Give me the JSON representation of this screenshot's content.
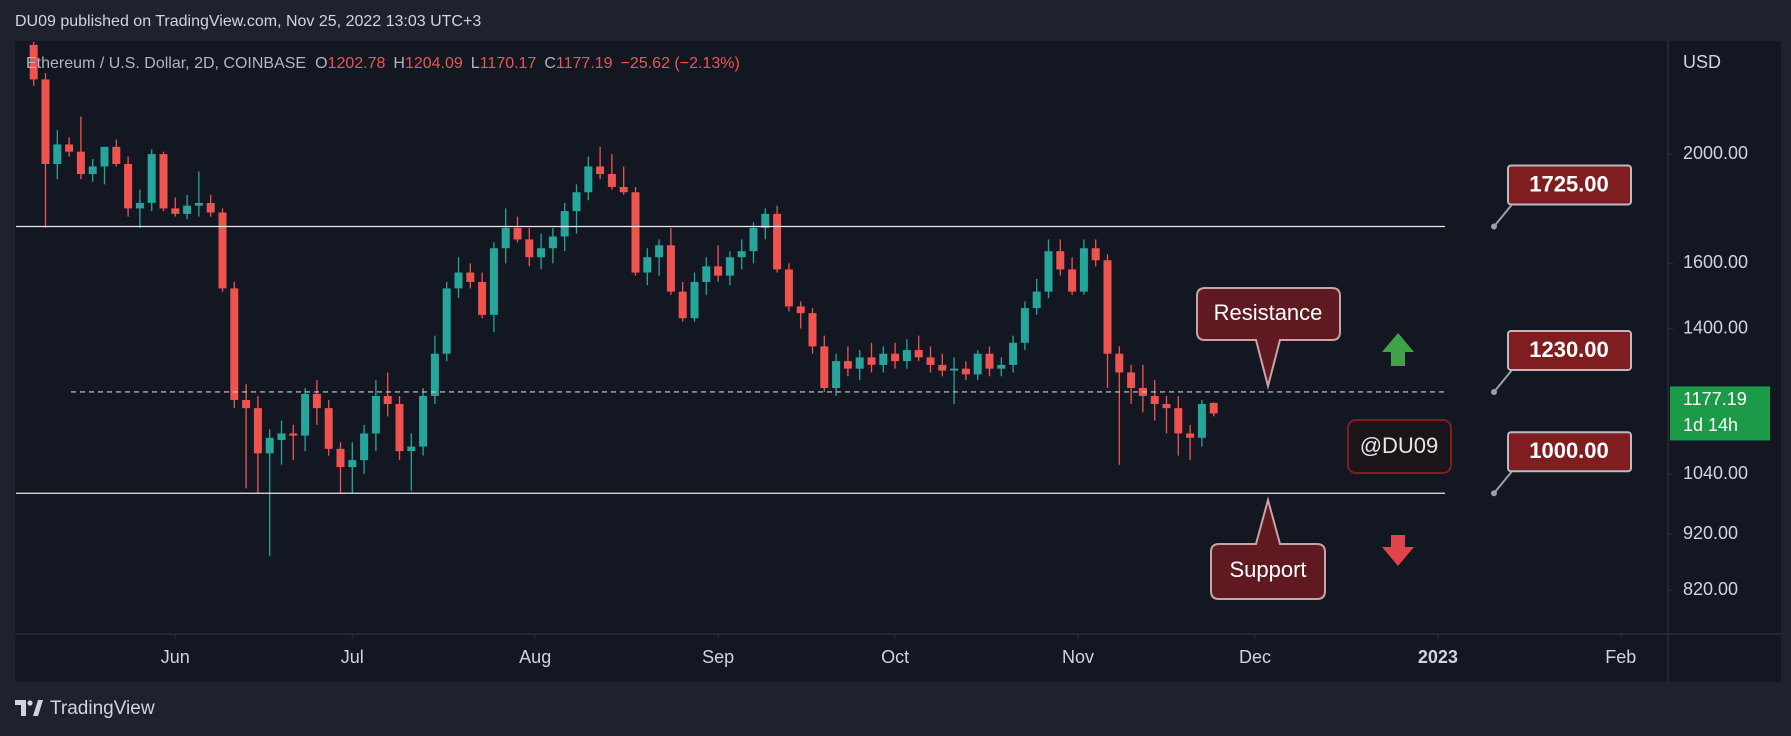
{
  "chart_data": {
    "type": "candlestick",
    "header": "DU09 published on TradingView.com, Nov 25, 2022 13:03 UTC+3",
    "symbol": "Ethereum / U.S. Dollar, 2D, COINBASE",
    "ohlc_letters": [
      "O",
      "H",
      "L",
      "C"
    ],
    "change": "−25.62 (−2.13%)",
    "currency": "USD",
    "countdown": "1d 14h",
    "footer": "TradingView",
    "watermark": "@DU09",
    "annotations": [
      "Resistance",
      "Support"
    ],
    "up_color": "#26a69a",
    "down_color": "#ef5350",
    "log_scale": true,
    "grid": false,
    "xlim": [
      0,
      280
    ],
    "xticks": [
      {
        "value": 27,
        "label": "Jun"
      },
      {
        "value": 57,
        "label": "Jul"
      },
      {
        "value": 88,
        "label": "Aug"
      },
      {
        "value": 119,
        "label": "Sep"
      },
      {
        "value": 149,
        "label": "Oct"
      },
      {
        "value": 180,
        "label": "Nov"
      },
      {
        "value": 210,
        "label": "Dec"
      },
      {
        "value": 241,
        "label": "2023"
      },
      {
        "value": 272,
        "label": "Feb"
      }
    ],
    "ylim": [
      750,
      2515
    ],
    "yticks": [
      {
        "value": 820,
        "label": "820.00"
      },
      {
        "value": 920,
        "label": "920.00"
      },
      {
        "value": 1040,
        "label": "1040.00"
      },
      {
        "value": 1400,
        "label": "1400.00"
      },
      {
        "value": 1600,
        "label": "1600.00"
      },
      {
        "value": 2000,
        "label": "2000.00"
      }
    ],
    "levels": [
      {
        "value": 1725,
        "label": "1725.00",
        "line": "solid"
      },
      {
        "value": 1230,
        "label": "1230.00",
        "line": "dashed"
      },
      {
        "value": 1000,
        "label": "1000.00",
        "line": "solid"
      }
    ],
    "x": [
      3,
      5,
      7,
      9,
      11,
      13,
      15,
      17,
      19,
      21,
      23,
      25,
      27,
      29,
      31,
      33,
      35,
      37,
      39,
      41,
      43,
      45,
      47,
      49,
      51,
      53,
      55,
      57,
      59,
      61,
      63,
      65,
      67,
      69,
      71,
      73,
      75,
      77,
      79,
      81,
      83,
      85,
      87,
      89,
      91,
      93,
      95,
      97,
      99,
      101,
      103,
      105,
      107,
      109,
      111,
      113,
      115,
      117,
      119,
      121,
      123,
      125,
      127,
      129,
      131,
      133,
      135,
      137,
      139,
      141,
      143,
      145,
      147,
      149,
      151,
      153,
      155,
      157,
      159,
      161,
      163,
      165,
      167,
      169,
      171,
      173,
      175,
      177,
      179,
      181,
      183,
      185,
      187,
      189,
      191,
      193,
      195,
      197,
      199,
      201,
      203
    ],
    "open": [
      2500,
      2330,
      1960,
      2040,
      2010,
      1920,
      1950,
      2030,
      1960,
      1790,
      1810,
      2000,
      1790,
      1770,
      1800,
      1810,
      1775,
      1520,
      1210,
      1190,
      1085,
      1115,
      1130,
      1125,
      1225,
      1190,
      1095,
      1055,
      1070,
      1130,
      1220,
      1200,
      1090,
      1100,
      1220,
      1330,
      1520,
      1570,
      1540,
      1440,
      1650,
      1720,
      1680,
      1620,
      1650,
      1690,
      1780,
      1850,
      1950,
      1920,
      1870,
      1850,
      1570,
      1620,
      1660,
      1510,
      1430,
      1540,
      1590,
      1560,
      1620,
      1640,
      1720,
      1770,
      1580,
      1465,
      1445,
      1350,
      1240,
      1310,
      1290,
      1320,
      1300,
      1330,
      1310,
      1340,
      1320,
      1300,
      1285,
      1290,
      1275,
      1330,
      1290,
      1300,
      1360,
      1460,
      1510,
      1640,
      1580,
      1510,
      1650,
      1610,
      1330,
      1280,
      1240,
      1220,
      1200,
      1190,
      1130,
      1120,
      1202.78
    ],
    "high": [
      2540,
      2360,
      2100,
      2070,
      2160,
      1980,
      2030,
      2060,
      1990,
      1860,
      2020,
      2010,
      1830,
      1840,
      1930,
      1840,
      1790,
      1540,
      1250,
      1220,
      1140,
      1160,
      1150,
      1240,
      1260,
      1210,
      1110,
      1110,
      1150,
      1260,
      1280,
      1220,
      1130,
      1240,
      1380,
      1540,
      1620,
      1600,
      1570,
      1670,
      1790,
      1760,
      1720,
      1700,
      1720,
      1810,
      1880,
      1990,
      2030,
      2000,
      1950,
      1870,
      1650,
      1680,
      1720,
      1540,
      1570,
      1620,
      1660,
      1640,
      1680,
      1740,
      1790,
      1800,
      1600,
      1480,
      1460,
      1380,
      1330,
      1350,
      1340,
      1360,
      1350,
      1360,
      1370,
      1380,
      1350,
      1330,
      1320,
      1310,
      1340,
      1350,
      1320,
      1380,
      1480,
      1550,
      1680,
      1680,
      1620,
      1680,
      1680,
      1630,
      1350,
      1300,
      1300,
      1260,
      1220,
      1220,
      1150,
      1210,
      1204.09
    ],
    "low": [
      2300,
      1720,
      1900,
      1990,
      1900,
      1890,
      1880,
      1950,
      1760,
      1720,
      1780,
      1780,
      1760,
      1750,
      1760,
      1760,
      1510,
      1190,
      1010,
      1000,
      880,
      1060,
      1070,
      1090,
      1150,
      1080,
      1000,
      1000,
      1040,
      1090,
      1170,
      1070,
      1005,
      1080,
      1200,
      1310,
      1490,
      1520,
      1430,
      1390,
      1600,
      1670,
      1590,
      1580,
      1600,
      1640,
      1700,
      1820,
      1900,
      1860,
      1840,
      1560,
      1530,
      1560,
      1500,
      1420,
      1420,
      1500,
      1540,
      1530,
      1580,
      1600,
      1680,
      1570,
      1450,
      1400,
      1330,
      1230,
      1220,
      1270,
      1260,
      1280,
      1280,
      1290,
      1290,
      1310,
      1280,
      1270,
      1200,
      1260,
      1260,
      1270,
      1270,
      1280,
      1340,
      1440,
      1490,
      1560,
      1500,
      1500,
      1590,
      1240,
      1060,
      1200,
      1180,
      1160,
      1130,
      1080,
      1070,
      1100,
      1170.17
    ],
    "close": [
      2330,
      1960,
      2040,
      2010,
      1920,
      1950,
      2030,
      1960,
      1790,
      1810,
      2000,
      1790,
      1770,
      1800,
      1810,
      1775,
      1520,
      1210,
      1190,
      1085,
      1120,
      1130,
      1125,
      1225,
      1190,
      1095,
      1055,
      1070,
      1130,
      1220,
      1200,
      1090,
      1100,
      1220,
      1330,
      1520,
      1570,
      1540,
      1440,
      1650,
      1720,
      1680,
      1620,
      1650,
      1690,
      1780,
      1850,
      1950,
      1920,
      1870,
      1850,
      1570,
      1620,
      1660,
      1510,
      1430,
      1540,
      1590,
      1560,
      1620,
      1640,
      1720,
      1770,
      1580,
      1465,
      1445,
      1350,
      1240,
      1310,
      1290,
      1320,
      1300,
      1330,
      1310,
      1340,
      1320,
      1300,
      1285,
      1290,
      1275,
      1330,
      1290,
      1300,
      1360,
      1460,
      1510,
      1640,
      1580,
      1510,
      1650,
      1610,
      1330,
      1280,
      1240,
      1220,
      1200,
      1190,
      1130,
      1120,
      1200,
      1177.19
    ]
  }
}
